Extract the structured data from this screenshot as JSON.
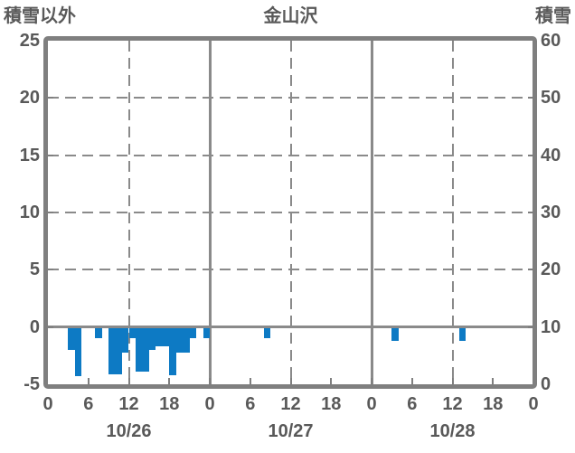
{
  "colors": {
    "bar": "#0d7ac4",
    "text": "#595959",
    "grid": "#8a8a8a",
    "frame": "#7f7f7f",
    "background": "#ffffff"
  },
  "chart_data": {
    "type": "bar",
    "title": "金山沢",
    "left_axis": {
      "label": "積雪以外",
      "min": -5,
      "max": 25,
      "ticks": [
        "25",
        "20",
        "15",
        "10",
        "5",
        "0",
        "-5"
      ],
      "tick_values": [
        25,
        20,
        15,
        10,
        5,
        0,
        -5
      ]
    },
    "right_axis": {
      "label": "積雪",
      "min": 0,
      "max": 60,
      "ticks": [
        "60",
        "50",
        "40",
        "30",
        "20",
        "10",
        "0"
      ],
      "tick_values": [
        60,
        50,
        40,
        30,
        20,
        10,
        0
      ]
    },
    "x_axis": {
      "total_hours": 72,
      "tick_interval_hours": 6,
      "hour_labels": [
        "0",
        "6",
        "12",
        "18",
        "0",
        "6",
        "12",
        "18",
        "0",
        "6",
        "12",
        "18",
        "0"
      ],
      "date_labels": [
        "10/26",
        "10/27",
        "10/28"
      ],
      "date_center_hours": [
        12,
        36,
        60
      ]
    },
    "grid": {
      "h_dashed_values": [
        20,
        15,
        10,
        5
      ],
      "h_solid_values": [
        0
      ],
      "v_dashed_hours": [
        12,
        36,
        60
      ],
      "v_solid_hours": [
        24,
        48
      ]
    },
    "series": [
      {
        "name": "積雪以外",
        "axis": "left",
        "color": "#0d7ac4",
        "points": [
          {
            "hour": 3,
            "value": -2.0
          },
          {
            "hour": 4,
            "value": -4.3
          },
          {
            "hour": 7,
            "value": -1.0
          },
          {
            "hour": 9,
            "value": -4.1
          },
          {
            "hour": 10,
            "value": -4.1
          },
          {
            "hour": 11,
            "value": -2.2
          },
          {
            "hour": 12,
            "value": -1.0
          },
          {
            "hour": 13,
            "value": -3.9
          },
          {
            "hour": 14,
            "value": -3.9
          },
          {
            "hour": 15,
            "value": -2.0
          },
          {
            "hour": 16,
            "value": -1.7
          },
          {
            "hour": 17,
            "value": -1.7
          },
          {
            "hour": 18,
            "value": -4.25
          },
          {
            "hour": 19,
            "value": -2.2
          },
          {
            "hour": 20,
            "value": -2.2
          },
          {
            "hour": 21,
            "value": -1.0
          },
          {
            "hour": 23,
            "value": -1.0
          },
          {
            "hour": 32,
            "value": -1.0
          },
          {
            "hour": 51,
            "value": -1.2
          },
          {
            "hour": 61,
            "value": -1.2
          }
        ]
      }
    ]
  }
}
